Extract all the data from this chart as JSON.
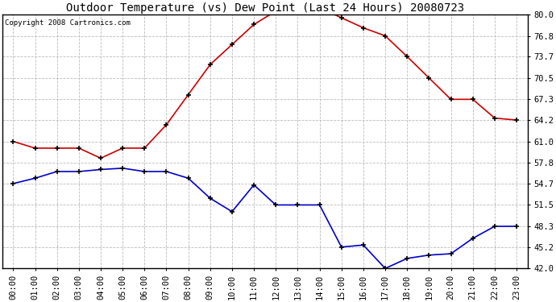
{
  "title": "Outdoor Temperature (vs) Dew Point (Last 24 Hours) 20080723",
  "copyright_text": "Copyright 2008 Cartronics.com",
  "hours": [
    0,
    1,
    2,
    3,
    4,
    5,
    6,
    7,
    8,
    9,
    10,
    11,
    12,
    13,
    14,
    15,
    16,
    17,
    18,
    19,
    20,
    21,
    22,
    23
  ],
  "temp_red": [
    61.0,
    60.0,
    60.0,
    60.0,
    58.5,
    60.0,
    60.0,
    63.5,
    68.0,
    72.5,
    75.5,
    78.5,
    80.5,
    81.0,
    81.0,
    79.5,
    78.0,
    76.8,
    73.7,
    70.5,
    67.3,
    67.3,
    64.5,
    64.2
  ],
  "dew_blue": [
    54.7,
    55.5,
    56.5,
    56.5,
    56.8,
    57.0,
    56.5,
    56.5,
    55.5,
    52.5,
    50.5,
    54.5,
    51.5,
    51.5,
    51.5,
    45.2,
    45.5,
    42.0,
    43.5,
    44.0,
    44.2,
    46.5,
    48.3,
    48.3
  ],
  "ylim": [
    42.0,
    80.0
  ],
  "yticks": [
    42.0,
    45.2,
    48.3,
    51.5,
    54.7,
    57.8,
    61.0,
    64.2,
    67.3,
    70.5,
    73.7,
    76.8,
    80.0
  ],
  "ytick_labels": [
    "42.0",
    "45.2",
    "48.3",
    "51.5",
    "54.7",
    "57.8",
    "61.0",
    "64.2",
    "67.3",
    "70.5",
    "73.7",
    "76.8",
    "80.0"
  ],
  "bg_color": "#ffffff",
  "plot_bg_color": "#ffffff",
  "grid_color": "#bbbbbb",
  "red_color": "#cc0000",
  "blue_color": "#0000cc",
  "title_fontsize": 10,
  "copyright_fontsize": 6.5,
  "tick_fontsize": 7.5,
  "marker": "+",
  "marker_color": "#000000",
  "marker_size": 5,
  "line_width": 1.2
}
